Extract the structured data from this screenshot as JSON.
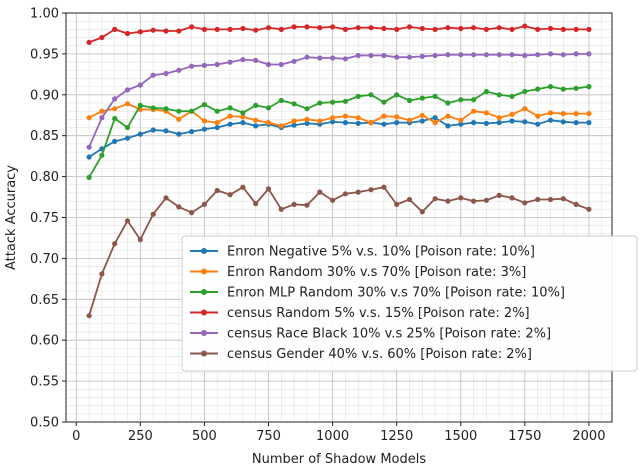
{
  "chart_data": {
    "type": "line",
    "title": "",
    "xlabel": "Number of Shadow Models",
    "ylabel": "Attack Accuracy",
    "xlim": [
      -40,
      2090
    ],
    "ylim": [
      0.5,
      1.0
    ],
    "xticks": [
      0,
      250,
      500,
      750,
      1000,
      1250,
      1500,
      1750,
      2000
    ],
    "yticks": [
      0.5,
      0.55,
      0.6,
      0.65,
      0.7,
      0.75,
      0.8,
      0.85,
      0.9,
      0.95,
      1.0
    ],
    "xtick_labels": [
      "0",
      "250",
      "500",
      "750",
      "1000",
      "1250",
      "1500",
      "1750",
      "2000"
    ],
    "ytick_labels": [
      "0.50",
      "0.55",
      "0.60",
      "0.65",
      "0.70",
      "0.75",
      "0.80",
      "0.85",
      "0.90",
      "0.95",
      "1.00"
    ],
    "grid": true,
    "legend_position": "lower-right",
    "x": [
      50,
      100,
      150,
      200,
      250,
      300,
      350,
      400,
      450,
      500,
      550,
      600,
      650,
      700,
      750,
      800,
      850,
      900,
      950,
      1000,
      1050,
      1100,
      1150,
      1200,
      1250,
      1300,
      1350,
      1400,
      1450,
      1500,
      1550,
      1600,
      1650,
      1700,
      1750,
      1800,
      1850,
      1900,
      1950,
      2000
    ],
    "series": [
      {
        "name": "Enron Negative 5% v.s. 10% [Poison rate: 10%]",
        "color": "#1f77b4",
        "values": [
          0.824,
          0.834,
          0.843,
          0.847,
          0.852,
          0.857,
          0.856,
          0.852,
          0.855,
          0.858,
          0.86,
          0.864,
          0.866,
          0.862,
          0.864,
          0.86,
          0.863,
          0.865,
          0.864,
          0.867,
          0.866,
          0.865,
          0.866,
          0.864,
          0.866,
          0.866,
          0.868,
          0.872,
          0.862,
          0.864,
          0.866,
          0.865,
          0.866,
          0.868,
          0.867,
          0.864,
          0.869,
          0.867,
          0.866,
          0.866
        ]
      },
      {
        "name": "Enron Random 30% v.s 70% [Poison rate: 3%]",
        "color": "#ff7f0e",
        "values": [
          0.872,
          0.88,
          0.883,
          0.889,
          0.882,
          0.882,
          0.88,
          0.87,
          0.88,
          0.868,
          0.866,
          0.874,
          0.873,
          0.869,
          0.866,
          0.862,
          0.868,
          0.87,
          0.868,
          0.872,
          0.874,
          0.872,
          0.866,
          0.874,
          0.873,
          0.869,
          0.875,
          0.866,
          0.874,
          0.869,
          0.88,
          0.878,
          0.872,
          0.876,
          0.883,
          0.874,
          0.878,
          0.877,
          0.877,
          0.877
        ]
      },
      {
        "name": "Enron MLP Random 30% v.s 70% [Poison rate: 10%]",
        "color": "#2ca02c",
        "values": [
          0.799,
          0.826,
          0.871,
          0.86,
          0.887,
          0.884,
          0.883,
          0.88,
          0.88,
          0.888,
          0.88,
          0.884,
          0.878,
          0.887,
          0.884,
          0.893,
          0.889,
          0.883,
          0.89,
          0.891,
          0.892,
          0.898,
          0.9,
          0.891,
          0.9,
          0.893,
          0.896,
          0.898,
          0.89,
          0.894,
          0.894,
          0.904,
          0.9,
          0.898,
          0.904,
          0.907,
          0.91,
          0.907,
          0.908,
          0.91
        ]
      },
      {
        "name": "census Random 5% v.s. 15% [Poison rate: 2%]",
        "color": "#d62728",
        "values": [
          0.964,
          0.97,
          0.98,
          0.975,
          0.977,
          0.979,
          0.978,
          0.978,
          0.983,
          0.98,
          0.98,
          0.98,
          0.981,
          0.979,
          0.982,
          0.98,
          0.983,
          0.983,
          0.982,
          0.983,
          0.98,
          0.982,
          0.982,
          0.981,
          0.98,
          0.983,
          0.981,
          0.98,
          0.982,
          0.981,
          0.982,
          0.98,
          0.982,
          0.98,
          0.984,
          0.98,
          0.981,
          0.98,
          0.98,
          0.98
        ]
      },
      {
        "name": "census Race Black 10% v.s 25% [Poison rate: 2%]",
        "color": "#9467bd",
        "values": [
          0.836,
          0.872,
          0.895,
          0.906,
          0.912,
          0.924,
          0.926,
          0.93,
          0.935,
          0.936,
          0.937,
          0.94,
          0.943,
          0.942,
          0.937,
          0.937,
          0.941,
          0.946,
          0.945,
          0.945,
          0.944,
          0.948,
          0.948,
          0.948,
          0.946,
          0.946,
          0.947,
          0.948,
          0.949,
          0.949,
          0.949,
          0.949,
          0.949,
          0.949,
          0.948,
          0.949,
          0.95,
          0.949,
          0.95,
          0.95
        ]
      },
      {
        "name": "census Gender 40% v.s. 60% [Poison rate: 2%]",
        "color": "#8c564b",
        "values": [
          0.63,
          0.681,
          0.718,
          0.746,
          0.723,
          0.754,
          0.774,
          0.763,
          0.756,
          0.766,
          0.783,
          0.778,
          0.787,
          0.767,
          0.785,
          0.76,
          0.766,
          0.765,
          0.781,
          0.771,
          0.779,
          0.781,
          0.784,
          0.787,
          0.766,
          0.772,
          0.757,
          0.773,
          0.77,
          0.774,
          0.77,
          0.771,
          0.777,
          0.774,
          0.768,
          0.772,
          0.772,
          0.773,
          0.766,
          0.76
        ]
      }
    ]
  }
}
